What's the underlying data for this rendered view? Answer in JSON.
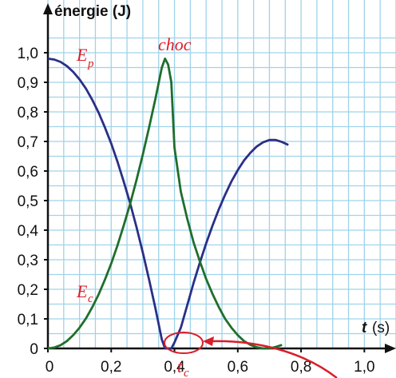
{
  "chart_data": {
    "type": "line",
    "ylabel": "énergie (J)",
    "xlabel_var": "t",
    "xlabel_unit": "(s)",
    "xlim": [
      0,
      1.1
    ],
    "ylim": [
      0,
      1.0
    ],
    "x_ticks": [
      "0",
      "0,2",
      "0,4",
      "0,6",
      "0,8",
      "1,0"
    ],
    "y_ticks": [
      "0",
      "0,1",
      "0,2",
      "0,3",
      "0,4",
      "0,5",
      "0,6",
      "0,7",
      "0,8",
      "0,9",
      "1,0"
    ],
    "grid": true,
    "grid_color": "#9fd3ea",
    "series": [
      {
        "name": "Ep",
        "color": "#2a2f86",
        "points": [
          [
            0,
            0.98
          ],
          [
            0.02,
            0.977
          ],
          [
            0.04,
            0.969
          ],
          [
            0.06,
            0.955
          ],
          [
            0.08,
            0.935
          ],
          [
            0.1,
            0.91
          ],
          [
            0.12,
            0.879
          ],
          [
            0.14,
            0.841
          ],
          [
            0.16,
            0.798
          ],
          [
            0.18,
            0.748
          ],
          [
            0.2,
            0.693
          ],
          [
            0.22,
            0.631
          ],
          [
            0.24,
            0.563
          ],
          [
            0.26,
            0.49
          ],
          [
            0.28,
            0.41
          ],
          [
            0.3,
            0.324
          ],
          [
            0.32,
            0.232
          ],
          [
            0.34,
            0.134
          ],
          [
            0.36,
            0.03
          ],
          [
            0.37,
            0.0
          ],
          [
            0.38,
            0.0
          ],
          [
            0.39,
            0.0
          ],
          [
            0.4,
            0.02
          ],
          [
            0.42,
            0.07
          ],
          [
            0.44,
            0.145
          ],
          [
            0.46,
            0.22
          ],
          [
            0.48,
            0.29
          ],
          [
            0.5,
            0.355
          ],
          [
            0.52,
            0.415
          ],
          [
            0.54,
            0.47
          ],
          [
            0.56,
            0.52
          ],
          [
            0.58,
            0.565
          ],
          [
            0.6,
            0.603
          ],
          [
            0.62,
            0.636
          ],
          [
            0.64,
            0.662
          ],
          [
            0.66,
            0.683
          ],
          [
            0.68,
            0.697
          ],
          [
            0.7,
            0.705
          ],
          [
            0.72,
            0.705
          ],
          [
            0.74,
            0.698
          ],
          [
            0.76,
            0.688
          ]
        ]
      },
      {
        "name": "Ec",
        "color": "#1f6e2c",
        "points": [
          [
            0,
            0.0
          ],
          [
            0.02,
            0.003
          ],
          [
            0.04,
            0.011
          ],
          [
            0.06,
            0.025
          ],
          [
            0.08,
            0.045
          ],
          [
            0.1,
            0.07
          ],
          [
            0.12,
            0.101
          ],
          [
            0.14,
            0.139
          ],
          [
            0.16,
            0.182
          ],
          [
            0.18,
            0.232
          ],
          [
            0.2,
            0.287
          ],
          [
            0.22,
            0.349
          ],
          [
            0.24,
            0.417
          ],
          [
            0.26,
            0.49
          ],
          [
            0.28,
            0.57
          ],
          [
            0.3,
            0.656
          ],
          [
            0.32,
            0.748
          ],
          [
            0.34,
            0.846
          ],
          [
            0.36,
            0.95
          ],
          [
            0.37,
            0.98
          ],
          [
            0.38,
            0.96
          ],
          [
            0.39,
            0.9
          ],
          [
            0.4,
            0.68
          ],
          [
            0.42,
            0.53
          ],
          [
            0.44,
            0.44
          ],
          [
            0.46,
            0.36
          ],
          [
            0.48,
            0.295
          ],
          [
            0.5,
            0.235
          ],
          [
            0.52,
            0.185
          ],
          [
            0.54,
            0.14
          ],
          [
            0.56,
            0.1
          ],
          [
            0.58,
            0.07
          ],
          [
            0.6,
            0.045
          ],
          [
            0.62,
            0.025
          ],
          [
            0.64,
            0.012
          ],
          [
            0.66,
            0.004
          ],
          [
            0.68,
            0.0
          ],
          [
            0.7,
            0.0
          ],
          [
            0.72,
            0.005
          ],
          [
            0.74,
            0.012
          ]
        ]
      }
    ],
    "annotations": {
      "ep_label": "Ep",
      "ec_label": "Ec",
      "choc": "choc",
      "tc": "tc",
      "color": "#d81e2a"
    }
  }
}
